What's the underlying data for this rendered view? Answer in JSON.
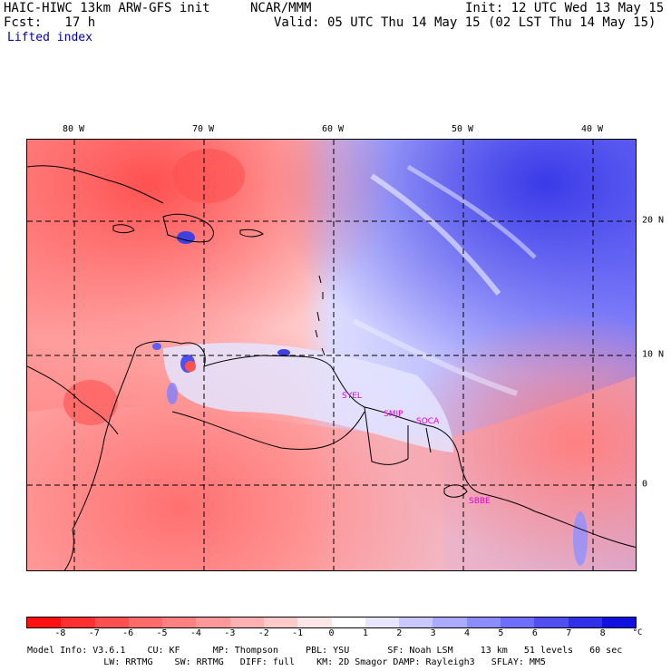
{
  "header": {
    "model": "HAIC-HIWC 13km ARW-GFS init",
    "center": "NCAR/MMM",
    "init": "Init: 12 UTC Wed 13 May 15",
    "fcst": "Fcst:   17 h",
    "valid": "Valid: 05 UTC Thu 14 May 15 (02 LST Thu 14 May 15)",
    "field": "Lifted index"
  },
  "map": {
    "lon_labels": [
      "80 W",
      "70 W",
      "60 W",
      "50 W",
      "40 W"
    ],
    "lat_labels": [
      "20 N",
      "10 N",
      "0"
    ],
    "stations": [
      "SYEL",
      "SMJP",
      "SOCA",
      "SBBE"
    ]
  },
  "colorbar": {
    "ticks": [
      "-8",
      "-7",
      "-6",
      "-5",
      "-4",
      "-3",
      "-2",
      "-1",
      "0",
      "1",
      "2",
      "3",
      "4",
      "5",
      "6",
      "7",
      "8"
    ],
    "unit": "°C",
    "colors": [
      "#ff1010",
      "#ff3030",
      "#ff5050",
      "#ff6a6a",
      "#ff8080",
      "#ff9898",
      "#ffb0b0",
      "#ffcaca",
      "#ffe6e6",
      "#ffffff",
      "#e6e6ff",
      "#c8c8ff",
      "#aaaaff",
      "#8c8cff",
      "#6e6efa",
      "#5050f0",
      "#3030e8",
      "#1010e0"
    ]
  },
  "footer": {
    "line1": "Model Info: V3.6.1    CU: KF      MP: Thompson     PBL: YSU       SF: Noah LSM     13 km   51 levels   60 sec",
    "line2": "              LW: RRTMG    SW: RRTMG   DIFF: full    KM: 2D Smagor DAMP: Rayleigh3   SFLAY: MM5"
  }
}
